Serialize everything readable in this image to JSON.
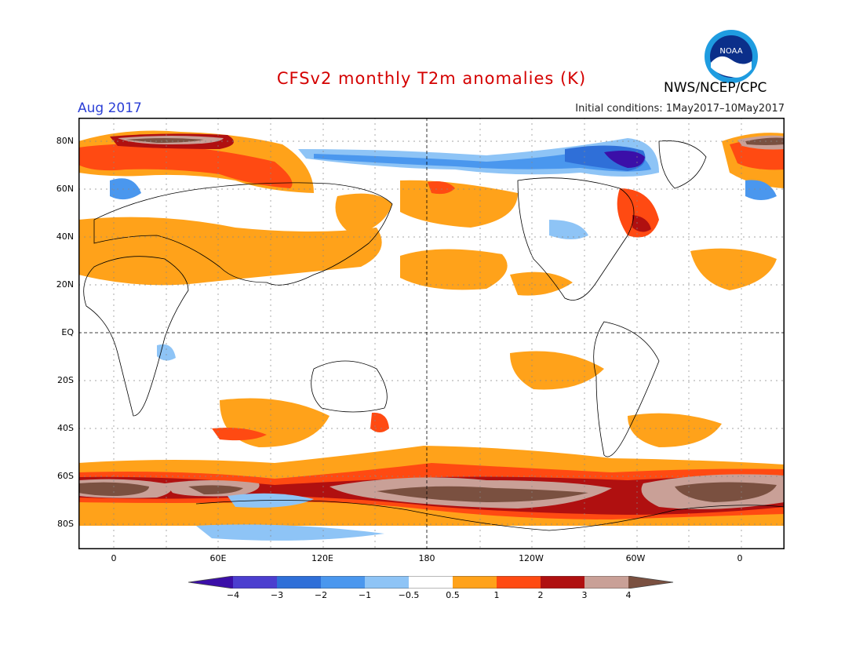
{
  "title": "CFSv2 monthly T2m anomalies (K)",
  "month_label": "Aug 2017",
  "initial_conditions": "Initial conditions: 1May2017–10May2017",
  "agency": "NWS/NCEP/CPC",
  "logo_text": "NOAA",
  "lat_labels": [
    "80N",
    "60N",
    "40N",
    "20N",
    "EQ",
    "20S",
    "40S",
    "60S",
    "80S"
  ],
  "lon_labels": [
    "0",
    "60E",
    "120E",
    "180",
    "120W",
    "60W",
    "0"
  ],
  "colorbar_labels": [
    "−4",
    "−3",
    "−2",
    "−1",
    "−0.5",
    "0.5",
    "1",
    "2",
    "3",
    "4"
  ],
  "colors": {
    "lt_m4": "#3b0fa8",
    "m4_m3": "#4b3ecf",
    "m3_m2": "#2f6fd8",
    "m2_m1": "#4a97ee",
    "m1_m05": "#8ec4f6",
    "neutral": "#ffffff",
    "p05_p1": "#ffa21a",
    "p1_p2": "#ff4a12",
    "p2_p3": "#b01010",
    "p3_p4": "#c9a097",
    "gt_p4": "#7a5040",
    "title": "#d40000",
    "month": "#2b3fd6"
  }
}
